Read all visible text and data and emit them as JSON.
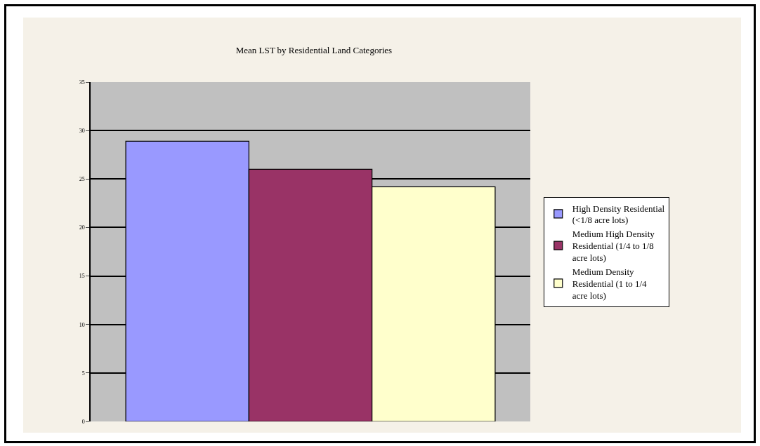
{
  "chart_data": {
    "type": "bar",
    "title": "Mean LST by Residential Land Categories",
    "categories": [
      null
    ],
    "series": [
      {
        "name": "High Density Residential (<1/8 acre lots)",
        "color": "#9999ff",
        "values": [
          28.9
        ]
      },
      {
        "name": "Medium High Density Residential (1/4 to 1/8 acre lots)",
        "color": "#993366",
        "values": [
          26.0
        ]
      },
      {
        "name": "Medium Density Residential (1 to 1/4 acre lots)",
        "color": "#ffffcc",
        "values": [
          24.2
        ]
      }
    ],
    "ylim": [
      0,
      35
    ],
    "yticks": [
      0,
      5,
      10,
      15,
      20,
      25,
      30,
      35
    ],
    "grid": "y",
    "legend": "right"
  }
}
